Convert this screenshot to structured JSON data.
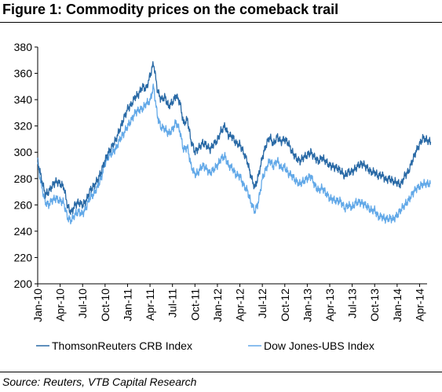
{
  "title": "Figure 1: Commodity prices on the comeback trail",
  "source": "Source: Reuters, VTB Capital Research",
  "colors": {
    "crb": "#2a6aa6",
    "djubs": "#63a9e8",
    "axis": "#000000"
  },
  "chart_data": {
    "type": "line",
    "title": "Figure 1: Commodity prices on the comeback trail",
    "xlabel": "",
    "ylabel": "",
    "ylim": [
      200,
      380
    ],
    "yticks": [
      200,
      220,
      240,
      260,
      280,
      300,
      320,
      340,
      360,
      380
    ],
    "xlim": [
      "2010-01",
      "2014-05"
    ],
    "xticks": [
      "Jan-10",
      "Apr-10",
      "Jul-10",
      "Oct-10",
      "Jan-11",
      "Apr-11",
      "Jul-11",
      "Oct-11",
      "Jan-12",
      "Apr-12",
      "Jul-12",
      "Oct-12",
      "Jan-13",
      "Apr-13",
      "Jul-13",
      "Oct-13",
      "Jan-14",
      "Apr-14"
    ],
    "grid": false,
    "legend": "bottom",
    "x": [
      "2010-01-01",
      "2010-01-15",
      "2010-02-01",
      "2010-02-15",
      "2010-03-01",
      "2010-03-15",
      "2010-04-01",
      "2010-04-15",
      "2010-05-01",
      "2010-05-15",
      "2010-06-01",
      "2010-06-15",
      "2010-07-01",
      "2010-07-15",
      "2010-08-01",
      "2010-08-15",
      "2010-09-01",
      "2010-09-15",
      "2010-10-01",
      "2010-10-15",
      "2010-11-01",
      "2010-11-15",
      "2010-12-01",
      "2010-12-15",
      "2011-01-01",
      "2011-01-15",
      "2011-02-01",
      "2011-02-15",
      "2011-03-01",
      "2011-03-15",
      "2011-04-01",
      "2011-04-15",
      "2011-05-01",
      "2011-05-15",
      "2011-06-01",
      "2011-06-15",
      "2011-07-01",
      "2011-07-15",
      "2011-08-01",
      "2011-08-15",
      "2011-09-01",
      "2011-09-15",
      "2011-10-01",
      "2011-10-15",
      "2011-11-01",
      "2011-11-15",
      "2011-12-01",
      "2011-12-15",
      "2012-01-01",
      "2012-01-15",
      "2012-02-01",
      "2012-02-15",
      "2012-03-01",
      "2012-03-15",
      "2012-04-01",
      "2012-04-15",
      "2012-05-01",
      "2012-05-15",
      "2012-06-01",
      "2012-06-15",
      "2012-07-01",
      "2012-07-15",
      "2012-08-01",
      "2012-08-15",
      "2012-09-01",
      "2012-09-15",
      "2012-10-01",
      "2012-10-15",
      "2012-11-01",
      "2012-11-15",
      "2012-12-01",
      "2012-12-15",
      "2013-01-01",
      "2013-01-15",
      "2013-02-01",
      "2013-02-15",
      "2013-03-01",
      "2013-03-15",
      "2013-04-01",
      "2013-04-15",
      "2013-05-01",
      "2013-05-15",
      "2013-06-01",
      "2013-06-15",
      "2013-07-01",
      "2013-07-15",
      "2013-08-01",
      "2013-08-15",
      "2013-09-01",
      "2013-09-15",
      "2013-10-01",
      "2013-10-15",
      "2013-11-01",
      "2013-11-15",
      "2013-12-01",
      "2013-12-15",
      "2014-01-01",
      "2014-01-15",
      "2014-02-01",
      "2014-02-15",
      "2014-03-01",
      "2014-03-15",
      "2014-04-01",
      "2014-04-15",
      "2014-05-01",
      "2014-05-15"
    ],
    "series": [
      {
        "name": "ThomsonReuters CRB Index",
        "color": "#2a6aa6",
        "values": [
          293,
          281,
          268,
          270,
          275,
          278,
          276,
          274,
          259,
          254,
          260,
          262,
          260,
          263,
          271,
          274,
          279,
          285,
          294,
          300,
          305,
          310,
          318,
          325,
          333,
          336,
          342,
          344,
          350,
          348,
          358,
          368,
          347,
          340,
          342,
          335,
          338,
          343,
          338,
          322,
          325,
          309,
          300,
          303,
          307,
          306,
          302,
          306,
          309,
          316,
          320,
          313,
          312,
          307,
          306,
          300,
          293,
          282,
          273,
          282,
          296,
          305,
          312,
          306,
          312,
          308,
          310,
          307,
          300,
          296,
          293,
          296,
          298,
          300,
          296,
          293,
          296,
          293,
          290,
          289,
          288,
          286,
          282,
          285,
          285,
          288,
          291,
          291,
          288,
          285,
          285,
          282,
          283,
          279,
          280,
          278,
          277,
          275,
          282,
          285,
          293,
          300,
          306,
          311,
          309,
          308
        ]
      },
      {
        "name": "Dow Jones-UBS Index",
        "color": "#63a9e8",
        "values": [
          291,
          276,
          262,
          260,
          264,
          265,
          263,
          262,
          250,
          248,
          253,
          255,
          253,
          258,
          266,
          268,
          274,
          280,
          292,
          297,
          300,
          303,
          310,
          314,
          320,
          324,
          330,
          332,
          333,
          337,
          339,
          350,
          327,
          319,
          318,
          314,
          317,
          323,
          316,
          302,
          304,
          290,
          283,
          285,
          290,
          288,
          284,
          287,
          290,
          295,
          297,
          290,
          288,
          283,
          282,
          275,
          271,
          262,
          255,
          262,
          280,
          287,
          294,
          289,
          294,
          288,
          289,
          284,
          282,
          278,
          276,
          278,
          280,
          282,
          275,
          271,
          273,
          269,
          265,
          264,
          263,
          263,
          257,
          260,
          258,
          262,
          262,
          261,
          259,
          256,
          256,
          251,
          251,
          249,
          250,
          249,
          252,
          256,
          260,
          263,
          268,
          272,
          274,
          276,
          276,
          276
        ]
      }
    ]
  }
}
